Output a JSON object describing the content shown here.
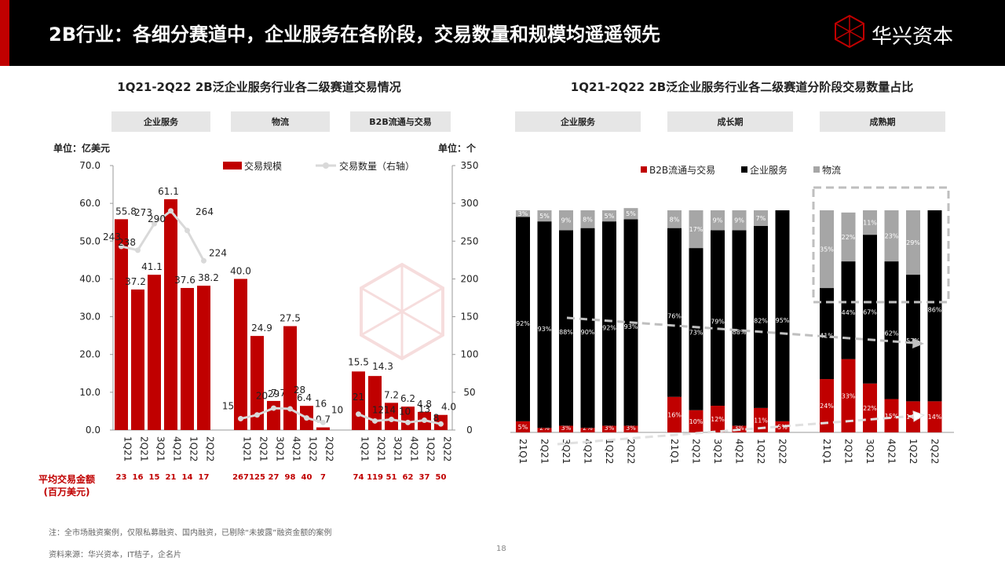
{
  "header": {
    "title": "2B行业：各细分赛道中，企业服务在各阶段，交易数量和规模均遥遥领先",
    "logo_text": "华兴资本",
    "accent_color": "#c00000"
  },
  "left": {
    "title": "1Q21-2Q22 2B泛企业服务行业各二级赛道交易情况",
    "groups": [
      "企业服务",
      "物流",
      "B2B流通与交易"
    ],
    "unit_left": "单位：亿美元",
    "unit_right": "单位：个",
    "avg_label_line1": "平均交易金额",
    "avg_label_line2": "(百万美元)"
  },
  "right": {
    "title": "1Q21-2Q22 2B泛企业服务行业各二级赛道分阶段交易数量占比",
    "groups": [
      "企业服务",
      "成长期",
      "成熟期"
    ]
  },
  "footer": {
    "note": "注：全市场融资案例，仅限私募融资、国内融资，已剔除“未披露”融资金额的案例",
    "source": "资料来源：华兴资本，IT桔子，企名片",
    "page": "18"
  },
  "chart_data": [
    {
      "type": "bar",
      "title": "1Q21-2Q22 2B泛企业服务行业各二级赛道交易情况",
      "ylabel": "单位：亿美元",
      "y2label": "单位：个",
      "ylim": [
        0,
        70
      ],
      "y_ticks": [
        "0.0",
        "10.0",
        "20.0",
        "30.0",
        "40.0",
        "50.0",
        "60.0",
        "70.0"
      ],
      "y2lim": [
        0,
        350
      ],
      "y2_ticks": [
        "0",
        "50",
        "100",
        "150",
        "200",
        "250",
        "300",
        "350"
      ],
      "legend": {
        "placement": "top",
        "bar": "交易规模",
        "line": "交易数量（右轴）"
      },
      "colors": {
        "bar": "#c00000",
        "line": "#d9d9d9",
        "avg_text": "#c00000"
      },
      "categories": [
        "1Q21",
        "2Q21",
        "3Q21",
        "4Q21",
        "1Q22",
        "2Q22"
      ],
      "groups": [
        {
          "name": "企业服务",
          "bar_values": [
            55.8,
            37.2,
            41.1,
            61.1,
            37.6,
            38.2
          ],
          "bar_labels": [
            "55.8",
            "37.2",
            "41.1",
            "61.1",
            "37.6",
            "38.2"
          ],
          "line_values": [
            243,
            238,
            273,
            290,
            264,
            224
          ],
          "line_labels": [
            "243",
            "238",
            "273",
            "290",
            "264",
            "224"
          ],
          "avg_amount": [
            "23",
            "16",
            "15",
            "21",
            "14",
            "17"
          ]
        },
        {
          "name": "物流",
          "bar_values": [
            40.0,
            24.9,
            7.7,
            27.5,
            6.4,
            0.7
          ],
          "bar_labels": [
            "40.0",
            "24.9",
            "7.7",
            "27.5",
            "6.4",
            "0.7"
          ],
          "line_values": [
            15,
            20,
            29,
            28,
            16,
            10
          ],
          "line_labels": [
            "15",
            "20",
            "29",
            "28",
            "16",
            "10"
          ],
          "avg_amount": [
            "267",
            "125",
            "27",
            "98",
            "40",
            "7"
          ]
        },
        {
          "name": "B2B流通与交易",
          "bar_values": [
            15.5,
            14.3,
            7.2,
            6.2,
            4.8,
            4.0
          ],
          "bar_labels": [
            "15.5",
            "14.3",
            "7.2",
            "6.2",
            "4.8",
            "4.0"
          ],
          "line_values": [
            21,
            12,
            14,
            10,
            13,
            8
          ],
          "line_labels": [
            "21",
            "12",
            "14",
            "10",
            "13",
            "8"
          ],
          "avg_amount": [
            "74",
            "119",
            "51",
            "62",
            "37",
            "50"
          ]
        }
      ]
    },
    {
      "type": "bar",
      "stacked": true,
      "percent": true,
      "title": "1Q21-2Q22 2B泛企业服务行业各二级赛道分阶段交易数量占比",
      "legend": {
        "placement": "top"
      },
      "series": [
        {
          "name": "B2B流通与交易",
          "color": "#c00000"
        },
        {
          "name": "企业服务",
          "color": "#000000"
        },
        {
          "name": "物流",
          "color": "#a6a6a6"
        }
      ],
      "categories": [
        "21Q1",
        "2Q21",
        "3Q21",
        "4Q21",
        "1Q22",
        "2Q22"
      ],
      "groups": [
        {
          "name": "企业服务",
          "stacks": [
            {
              "values": [
                5,
                92,
                3
              ],
              "labels": [
                "5%",
                "92%",
                "3%"
              ]
            },
            {
              "values": [
                2,
                93,
                5
              ],
              "labels": [
                "2%",
                "93%",
                "5%"
              ]
            },
            {
              "values": [
                3,
                88,
                9
              ],
              "labels": [
                "3%",
                "88%",
                "9%"
              ]
            },
            {
              "values": [
                2,
                90,
                8
              ],
              "labels": [
                "2%",
                "90%",
                "8%"
              ]
            },
            {
              "values": [
                3,
                92,
                5
              ],
              "labels": [
                "3%",
                "92%",
                "5%"
              ]
            },
            {
              "values": [
                3,
                93,
                5
              ],
              "labels": [
                "3%",
                "93%",
                "5%"
              ]
            }
          ]
        },
        {
          "name": "成长期",
          "stacks": [
            {
              "values": [
                16,
                76,
                8
              ],
              "labels": [
                "16%",
                "76%",
                "8%"
              ]
            },
            {
              "values": [
                10,
                73,
                17
              ],
              "labels": [
                "10%",
                "73%",
                "17%"
              ]
            },
            {
              "values": [
                12,
                79,
                9
              ],
              "labels": [
                "12%",
                "79%",
                "9%"
              ]
            },
            {
              "values": [
                3,
                88,
                9
              ],
              "labels": [
                "3%",
                "88%",
                "9%"
              ]
            },
            {
              "values": [
                11,
                82,
                7
              ],
              "labels": [
                "11%",
                "82%",
                "7%"
              ]
            },
            {
              "values": [
                5,
                95,
                0
              ],
              "labels": [
                "5%",
                "95%",
                ""
              ]
            }
          ]
        },
        {
          "name": "成熟期",
          "stacks": [
            {
              "values": [
                24,
                41,
                35
              ],
              "labels": [
                "24%",
                "41%",
                "35%"
              ]
            },
            {
              "values": [
                33,
                44,
                22
              ],
              "labels": [
                "33%",
                "44%",
                "22%"
              ]
            },
            {
              "values": [
                22,
                67,
                11
              ],
              "labels": [
                "22%",
                "67%",
                "11%"
              ]
            },
            {
              "values": [
                15,
                62,
                23
              ],
              "labels": [
                "15%",
                "62%",
                "23%"
              ]
            },
            {
              "values": [
                14,
                57,
                29
              ],
              "labels": [
                "14%",
                "57%",
                "29%"
              ]
            },
            {
              "values": [
                14,
                86,
                0
              ],
              "labels": [
                "14%",
                "86%",
                ""
              ]
            }
          ]
        }
      ]
    }
  ]
}
